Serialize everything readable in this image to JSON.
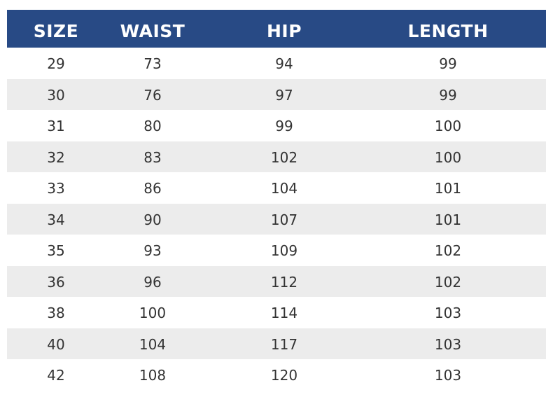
{
  "headers": [
    "SIZE",
    "WAIST",
    "HIP",
    "LENGTH"
  ],
  "rows": [
    [
      "29",
      "73",
      "94",
      "99"
    ],
    [
      "30",
      "76",
      "97",
      "99"
    ],
    [
      "31",
      "80",
      "99",
      "100"
    ],
    [
      "32",
      "83",
      "102",
      "100"
    ],
    [
      "33",
      "86",
      "104",
      "101"
    ],
    [
      "34",
      "90",
      "107",
      "101"
    ],
    [
      "35",
      "93",
      "109",
      "102"
    ],
    [
      "36",
      "96",
      "112",
      "102"
    ],
    [
      "38",
      "100",
      "114",
      "103"
    ],
    [
      "40",
      "104",
      "117",
      "103"
    ],
    [
      "42",
      "108",
      "120",
      "103"
    ]
  ],
  "colors": {
    "header_bg": "#284a85",
    "alt_row": "#ececec"
  }
}
